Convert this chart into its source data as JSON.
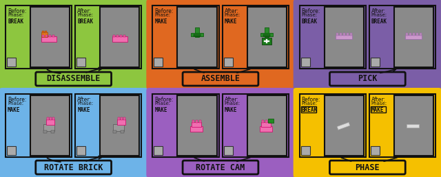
{
  "cells": [
    {
      "label": "DISASSEMBLE",
      "bg_color": "#8dc63f",
      "before_phase": "BREAK",
      "after_phase": "BREAK",
      "row": 0,
      "col": 0,
      "arrow": "left_down_right"
    },
    {
      "label": "ASSEMBLE",
      "bg_color": "#e06820",
      "before_phase": "MAKE",
      "after_phase": "MAKE",
      "row": 0,
      "col": 1,
      "arrow": "both_down"
    },
    {
      "label": "PICK",
      "bg_color": "#7b5ea7",
      "before_phase": "BREAK",
      "after_phase": "BREAK",
      "row": 0,
      "col": 2,
      "arrow": "right_up"
    },
    {
      "label": "ROTATE BRICK",
      "bg_color": "#6db3e8",
      "before_phase": "MAKE",
      "after_phase": "MAKE",
      "row": 1,
      "col": 0,
      "arrow": "left_down_right"
    },
    {
      "label": "ROTATE CAM",
      "bg_color": "#9b5fc0",
      "before_phase": "MAKE",
      "after_phase": "MAKE",
      "row": 1,
      "col": 1,
      "arrow": "both_down"
    },
    {
      "label": "PHASE",
      "bg_color": "#f5c000",
      "before_phase": "BREAK",
      "after_phase": "MAKE",
      "row": 1,
      "col": 2,
      "arrow": "both_down"
    }
  ],
  "img_bg": "#8a8a8a",
  "panel_border": "#111111",
  "white": "#ffffff",
  "black": "#111111"
}
